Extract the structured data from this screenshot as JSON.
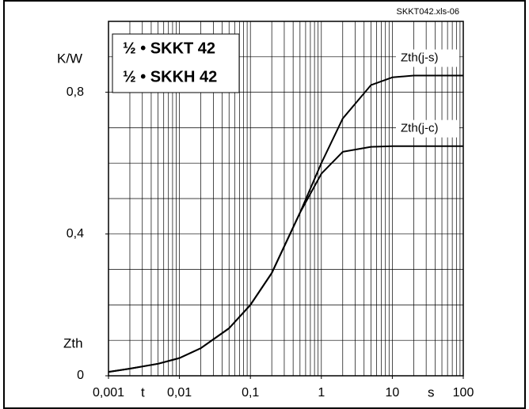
{
  "chart_data": {
    "type": "line",
    "source": "SKKT042.xls-06",
    "labels": [
      "½ • SKKT 42",
      "½ • SKKH 42"
    ],
    "y_unit": "K/W",
    "y_label": "Zth",
    "x_label": "t",
    "x_unit": "s",
    "xscale": "log",
    "xlim": [
      0.001,
      100
    ],
    "ylim": [
      0,
      1
    ],
    "xticks": [
      {
        "value": 0.001,
        "label": "0,001"
      },
      {
        "value": 0.01,
        "label": "0,01"
      },
      {
        "value": 0.1,
        "label": "0,1"
      },
      1,
      10,
      100
    ],
    "yticks": [
      0,
      {
        "value": 0.4,
        "label": "0,4"
      },
      {
        "value": 0.8,
        "label": "0,8"
      }
    ],
    "ygrid": [
      0,
      0.1,
      0.2,
      0.3,
      0.4,
      0.5,
      0.6,
      0.7,
      0.8,
      0.9,
      1
    ],
    "xgrid": [
      0.001,
      0.002,
      0.003,
      0.004,
      0.005,
      0.006,
      0.007,
      0.008,
      0.009,
      0.01,
      0.02,
      0.03,
      0.04,
      0.05,
      0.06,
      0.07,
      0.08,
      0.09,
      0.1,
      0.2,
      0.3,
      0.4,
      0.5,
      0.6,
      0.7,
      0.8,
      0.9,
      1,
      2,
      3,
      4,
      5,
      6,
      7,
      8,
      9,
      10,
      20,
      30,
      40,
      50,
      60,
      70,
      80,
      90,
      100
    ],
    "grid": true,
    "x": [
      0.001,
      0.002,
      0.005,
      0.01,
      0.02,
      0.05,
      0.1,
      0.2,
      0.5,
      1,
      2,
      5,
      10,
      20,
      100
    ],
    "series": [
      {
        "name": "Zth(j-s)",
        "color": "#000000",
        "values": [
          0.011,
          0.02,
          0.034,
          0.05,
          0.078,
          0.134,
          0.2,
          0.29,
          0.46,
          0.6,
          0.726,
          0.82,
          0.842,
          0.847,
          0.847
        ]
      },
      {
        "name": "Zth(j-c)",
        "color": "#000000",
        "values": [
          0.011,
          0.02,
          0.034,
          0.05,
          0.078,
          0.134,
          0.2,
          0.29,
          0.46,
          0.57,
          0.632,
          0.646,
          0.648,
          0.648,
          0.648
        ]
      }
    ]
  }
}
